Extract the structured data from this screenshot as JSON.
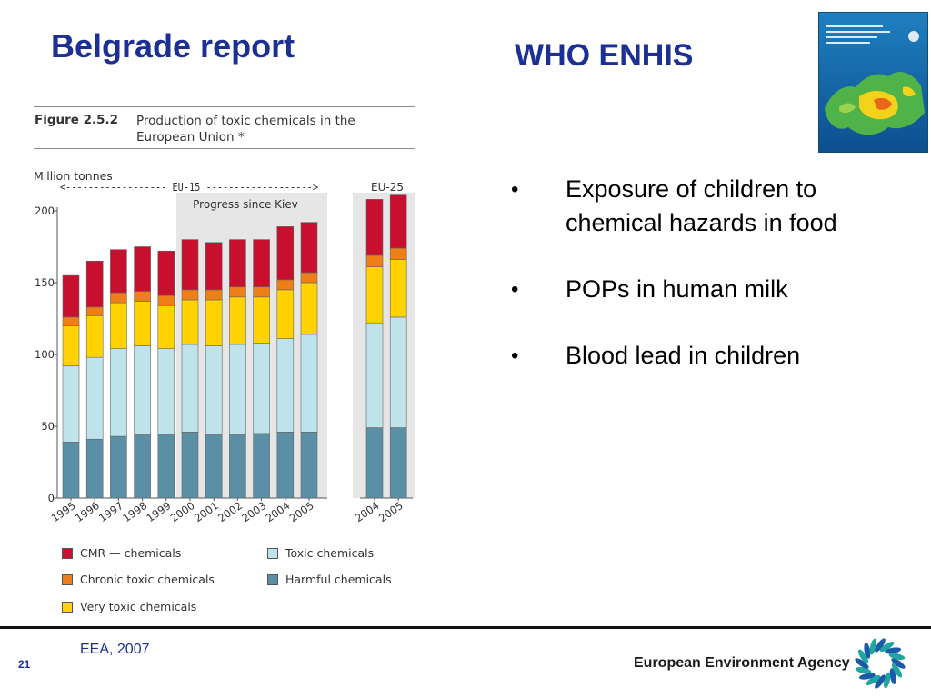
{
  "slide": {
    "title": "Belgrade report",
    "subtitle": "WHO ENHIS",
    "source": "EEA, 2007",
    "page_number": "21",
    "agency": "European Environment Agency",
    "bullets": [
      "Exposure of children to chemical hazards in food",
      "POPs in human milk",
      "Blood lead in children"
    ]
  },
  "figure": {
    "number": "Figure 2.5.2",
    "caption": "Production of toxic chemicals in the European Union *"
  },
  "chart_data": {
    "type": "bar",
    "stacked": true,
    "ylabel": "Million tonnes",
    "ylim": [
      0,
      200
    ],
    "yticks": [
      "0",
      "50",
      "100",
      "150",
      "200"
    ],
    "groups": [
      {
        "label": "<------------------ EU-15 ------------------->",
        "categories": [
          "1995",
          "1996",
          "1997",
          "1998",
          "1999",
          "2000",
          "2001",
          "2002",
          "2003",
          "2004",
          "2005"
        ],
        "series": [
          {
            "name": "Harmful chemicals",
            "values": [
              39,
              41,
              43,
              44,
              44,
              46,
              44,
              44,
              45,
              46,
              46
            ]
          },
          {
            "name": "Toxic chemicals",
            "values": [
              53,
              57,
              61,
              62,
              60,
              61,
              62,
              63,
              63,
              65,
              68
            ]
          },
          {
            "name": "Very toxic chemicals",
            "values": [
              28,
              29,
              32,
              31,
              30,
              31,
              32,
              33,
              32,
              34,
              36
            ]
          },
          {
            "name": "Chronic toxic chemicals",
            "values": [
              6,
              6,
              7,
              7,
              7,
              7,
              7,
              7,
              7,
              7,
              7
            ]
          },
          {
            "name": "CMR — chemicals",
            "values": [
              29,
              32,
              30,
              31,
              31,
              35,
              33,
              33,
              33,
              37,
              35
            ]
          }
        ]
      },
      {
        "label": "EU-25",
        "categories": [
          "2004",
          "2005"
        ],
        "series": [
          {
            "name": "Harmful chemicals",
            "values": [
              49,
              49
            ]
          },
          {
            "name": "Toxic chemicals",
            "values": [
              73,
              77
            ]
          },
          {
            "name": "Very toxic chemicals",
            "values": [
              39,
              40
            ]
          },
          {
            "name": "Chronic toxic chemicals",
            "values": [
              8,
              8
            ]
          },
          {
            "name": "CMR — chemicals",
            "values": [
              39,
              37
            ]
          }
        ]
      }
    ],
    "annotation": "Progress since Kiev",
    "legend": [
      {
        "name": "CMR — chemicals",
        "color": "#c8102e"
      },
      {
        "name": "Toxic chemicals",
        "color": "#bfe3ea"
      },
      {
        "name": "Chronic toxic chemicals",
        "color": "#ee7f16"
      },
      {
        "name": "Harmful chemicals",
        "color": "#5a8fa6"
      },
      {
        "name": "Very toxic chemicals",
        "color": "#ffd200"
      }
    ],
    "colors": {
      "Harmful chemicals": "#5a8fa6",
      "Toxic chemicals": "#bfe3ea",
      "Very toxic chemicals": "#ffd200",
      "Chronic toxic chemicals": "#ee7f16",
      "CMR — chemicals": "#c8102e"
    }
  }
}
